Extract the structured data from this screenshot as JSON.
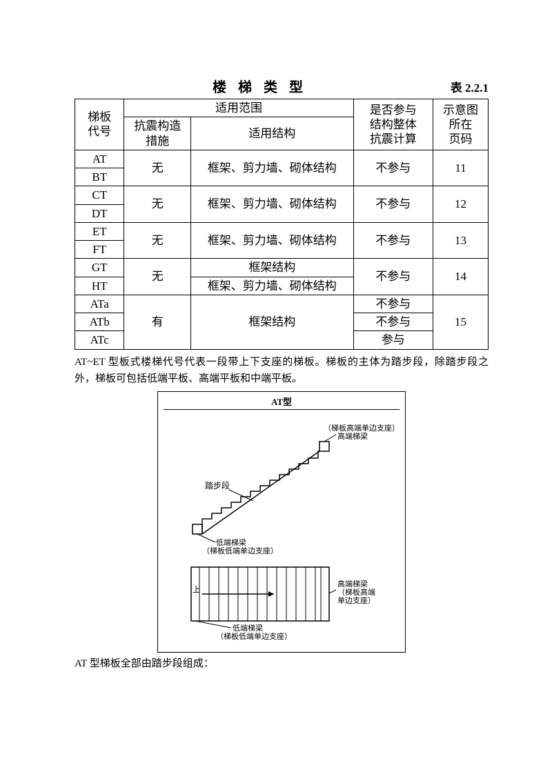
{
  "title": {
    "center": "楼 梯 类 型",
    "right": "表 2.2.1"
  },
  "table": {
    "headers": {
      "code": "梯板\n代号",
      "scope": "适用范围",
      "kz": "抗震构造\n措施",
      "jg": "适用结构",
      "cy": "是否参与\n结构整体\n抗震计算",
      "pg": "示意图\n所在\n页码"
    },
    "rows": {
      "at": "AT",
      "bt": "BT",
      "ct": "CT",
      "dt": "DT",
      "et": "ET",
      "ft": "FT",
      "gt": "GT",
      "ht": "HT",
      "ata": "ATa",
      "atb": "ATb",
      "atc": "ATc",
      "none": "无",
      "yes": "有",
      "struct_all": "框架、剪力墙、砌体结构",
      "struct_frame": "框架结构",
      "no_part": "不参与",
      "part": "参与",
      "p11": "11",
      "p12": "12",
      "p13": "13",
      "p14": "14",
      "p15": "15"
    }
  },
  "para1": "AT~ET 型板式楼梯代号代表一段带上下支座的梯板。梯板的主体为踏步段，除踏步段之外，梯板可包括低端平板、高端平板和中端平板。",
  "diagram": {
    "title": "AT型",
    "labels": {
      "top_right1": "（梯板高端单边支座）",
      "top_right2": "高端梯梁",
      "stair": "踏步段",
      "low_beam": "低端梯梁",
      "low_support": "（梯板低端单边支座）",
      "plan_top1": "高端梯梁",
      "plan_top2": "（梯板高端",
      "plan_top3": "单边支座）",
      "plan_bottom1": "低端梯梁",
      "plan_bottom2": "（梯板低端单边支座）",
      "up": "上"
    }
  },
  "caption": "AT 型梯板全部由踏步段组成："
}
